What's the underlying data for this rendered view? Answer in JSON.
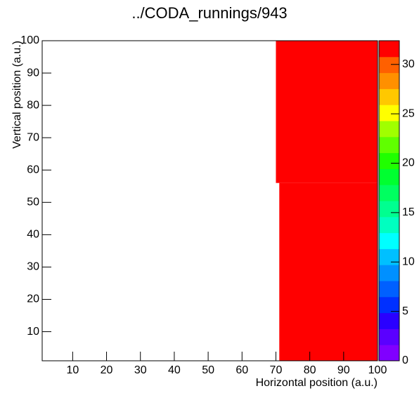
{
  "chart_data": {
    "type": "heatmap",
    "title": "../CODA_runnings/943",
    "x_label": "Horizontal position (a.u.)",
    "y_label": "Vertical position (a.u.)",
    "xlim": [
      1,
      100
    ],
    "xticks": [
      10,
      20,
      30,
      40,
      50,
      60,
      70,
      80,
      90,
      100
    ],
    "ylim": [
      1,
      100
    ],
    "yticks": [
      10,
      20,
      30,
      40,
      50,
      60,
      70,
      80,
      90,
      100
    ],
    "zlim": [
      0,
      32.4
    ],
    "zticks": [
      0,
      5,
      10,
      15,
      20,
      25,
      30
    ],
    "palette": [
      "#8000ff",
      "#5a00ff",
      "#2a00ff",
      "#0030ff",
      "#0060ff",
      "#0090ff",
      "#00c0ff",
      "#00ffff",
      "#00ffc0",
      "#00ff90",
      "#00ff60",
      "#00ff30",
      "#20ff00",
      "#60ff00",
      "#a0ff00",
      "#ffff00",
      "#ffc800",
      "#ff9000",
      "#ff6000",
      "#ff0000"
    ],
    "cells": [
      {
        "x": [
          70,
          100
        ],
        "y": [
          56,
          100
        ],
        "value": 32
      },
      {
        "x": [
          71,
          100
        ],
        "y": [
          1,
          56
        ],
        "value": 32
      }
    ]
  }
}
